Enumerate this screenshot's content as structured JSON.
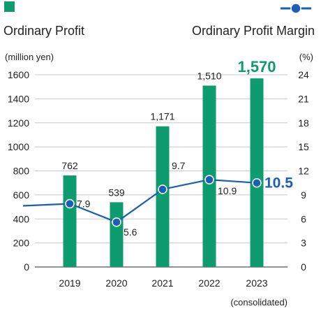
{
  "chart_data": {
    "type": "bar+line",
    "categories": [
      "2019",
      "2020",
      "2021",
      "2022",
      "2023"
    ],
    "series": [
      {
        "name": "Ordinary Profit",
        "kind": "bar",
        "axis": "left",
        "values": [
          762,
          539,
          1171,
          1510,
          1570
        ],
        "labels": [
          "762",
          "539",
          "1,171",
          "1,510",
          "1,570"
        ],
        "color": "#0e9c6e"
      },
      {
        "name": "Ordinary Profit Margin",
        "kind": "line",
        "axis": "right",
        "values": [
          7.9,
          5.6,
          9.7,
          10.9,
          10.5
        ],
        "labels": [
          "7.9",
          "5.6",
          "9.7",
          "10.9",
          "10.5"
        ],
        "color": "#1a5fb4"
      }
    ],
    "left_axis": {
      "unit": "(million yen)",
      "ylim": [
        0,
        1600
      ],
      "ticks": [
        "0",
        "200",
        "400",
        "600",
        "800",
        "1000",
        "1200",
        "1400",
        "1600"
      ]
    },
    "right_axis": {
      "unit": "(%)",
      "ylim": [
        0,
        24
      ],
      "ticks": [
        "0",
        "3",
        "6",
        "9",
        "12",
        "15",
        "18",
        "21",
        "24"
      ]
    },
    "grid": "horizontal",
    "legend_position": "top",
    "footnote": "(consolidated)"
  }
}
